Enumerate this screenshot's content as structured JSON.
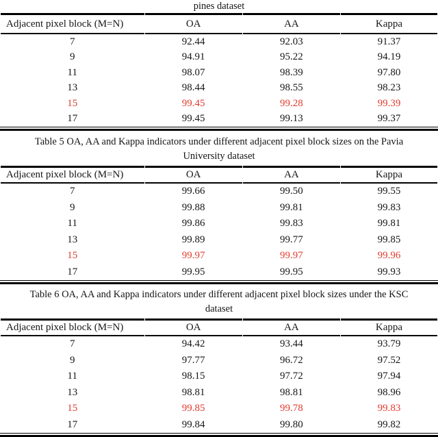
{
  "document": {
    "highlight_color": "#e23b2e",
    "tables": [
      {
        "name": "indian-pines",
        "caption_lines": [
          "pines dataset"
        ],
        "columns": [
          "Adjacent pixel block (M=N)",
          "OA",
          "AA",
          "Kappa"
        ],
        "rows": [
          {
            "highlight": false,
            "cells": [
              "7",
              "92.44",
              "92.03",
              "91.37"
            ]
          },
          {
            "highlight": false,
            "cells": [
              "9",
              "94.91",
              "95.22",
              "94.19"
            ]
          },
          {
            "highlight": false,
            "cells": [
              "11",
              "98.07",
              "98.39",
              "97.80"
            ]
          },
          {
            "highlight": false,
            "cells": [
              "13",
              "98.44",
              "98.55",
              "98.23"
            ]
          },
          {
            "highlight": true,
            "cells": [
              "15",
              "99.45",
              "99.28",
              "99.39"
            ]
          },
          {
            "highlight": false,
            "cells": [
              "17",
              "99.45",
              "99.13",
              "99.37"
            ]
          }
        ]
      },
      {
        "name": "pavia-university",
        "caption_lines": [
          "Table 5 OA, AA and Kappa indicators under different adjacent pixel block sizes on the Pavia",
          "University dataset"
        ],
        "columns": [
          "Adjacent pixel block (M=N)",
          "OA",
          "AA",
          "Kappa"
        ],
        "rows": [
          {
            "highlight": false,
            "cells": [
              "7",
              "99.66",
              "99.50",
              "99.55"
            ]
          },
          {
            "highlight": false,
            "cells": [
              "9",
              "99.88",
              "99.81",
              "99.83"
            ]
          },
          {
            "highlight": false,
            "cells": [
              "11",
              "99.86",
              "99.83",
              "99.81"
            ]
          },
          {
            "highlight": false,
            "cells": [
              "13",
              "99.89",
              "99.77",
              "99.85"
            ]
          },
          {
            "highlight": true,
            "cells": [
              "15",
              "99.97",
              "99.97",
              "99.96"
            ]
          },
          {
            "highlight": false,
            "cells": [
              "17",
              "99.95",
              "99.95",
              "99.93"
            ]
          }
        ]
      },
      {
        "name": "ksc",
        "caption_lines": [
          "Table 6 OA, AA and Kappa indicators under different adjacent pixel block sizes under the KSC",
          "dataset"
        ],
        "columns": [
          "Adjacent pixel block (M=N)",
          "OA",
          "AA",
          "Kappa"
        ],
        "rows": [
          {
            "highlight": false,
            "cells": [
              "7",
              "94.42",
              "93.44",
              "93.79"
            ]
          },
          {
            "highlight": false,
            "cells": [
              "9",
              "97.77",
              "96.72",
              "97.52"
            ]
          },
          {
            "highlight": false,
            "cells": [
              "11",
              "98.15",
              "97.72",
              "97.94"
            ]
          },
          {
            "highlight": false,
            "cells": [
              "13",
              "98.81",
              "98.81",
              "98.96"
            ]
          },
          {
            "highlight": true,
            "cells": [
              "15",
              "99.85",
              "99.78",
              "99.83"
            ]
          },
          {
            "highlight": false,
            "cells": [
              "17",
              "99.84",
              "99.80",
              "99.82"
            ]
          }
        ]
      }
    ]
  }
}
